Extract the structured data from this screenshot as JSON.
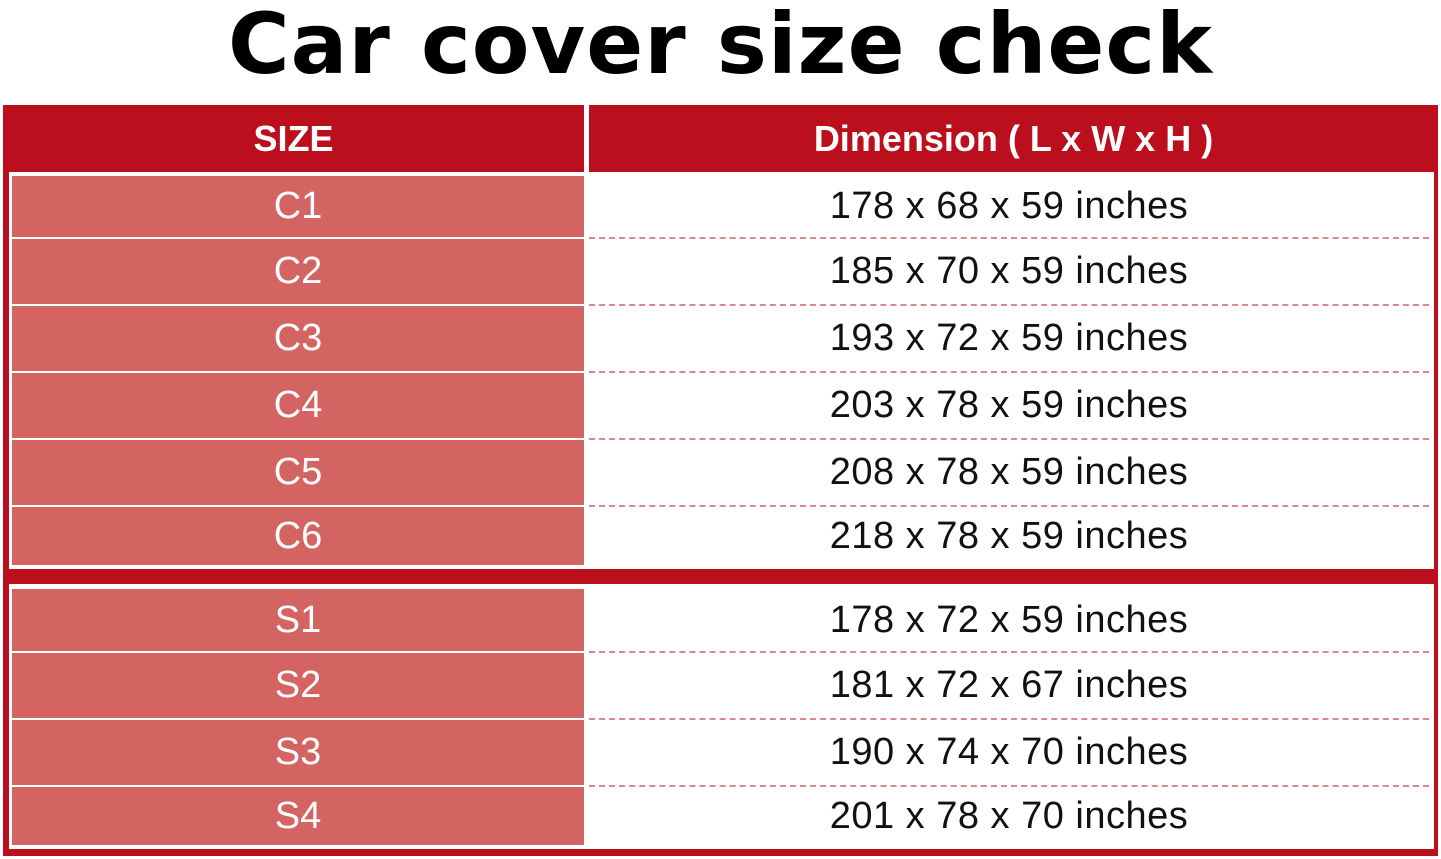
{
  "title": "Car cover size check",
  "header": {
    "size": "SIZE",
    "dimension": "Dimension ( L x W x H )"
  },
  "colors": {
    "header_red": "#bb0f1e",
    "size_cell": "#d46462"
  },
  "groups": [
    {
      "rows": [
        {
          "size": "C1",
          "dimension": "178 x 68 x 59 inches"
        },
        {
          "size": "C2",
          "dimension": "185 x 70 x 59 inches"
        },
        {
          "size": "C3",
          "dimension": "193 x 72 x 59 inches"
        },
        {
          "size": "C4",
          "dimension": "203 x 78 x 59 inches"
        },
        {
          "size": "C5",
          "dimension": "208 x 78 x 59 inches"
        },
        {
          "size": "C6",
          "dimension": "218 x 78 x 59 inches"
        }
      ]
    },
    {
      "rows": [
        {
          "size": "S1",
          "dimension": "178 x 72 x 59 inches"
        },
        {
          "size": "S2",
          "dimension": "181 x 72 x 67 inches"
        },
        {
          "size": "S3",
          "dimension": "190 x 74 x 70 inches"
        },
        {
          "size": "S4",
          "dimension": "201 x 78 x 70 inches"
        }
      ]
    }
  ]
}
